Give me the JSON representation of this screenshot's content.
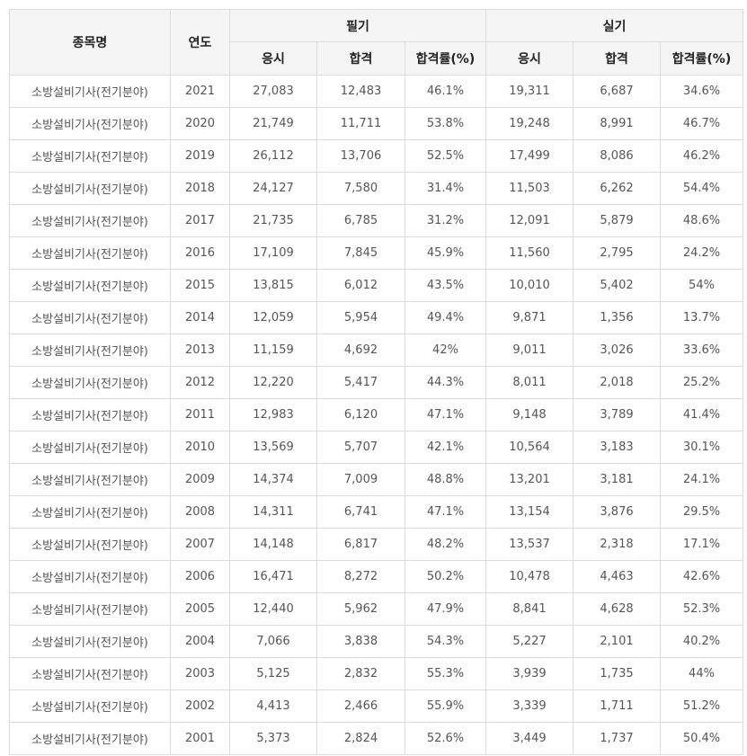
{
  "table": {
    "headers": {
      "name": "종목명",
      "year": "연도",
      "written": "필기",
      "practical": "실기",
      "applicants": "응시",
      "passed": "합격",
      "pass_rate": "합격률(%)"
    },
    "rows": [
      {
        "name": "소방설비기사(전기분야)",
        "year": "2021",
        "w_app": "27,083",
        "w_pass": "12,483",
        "w_rate": "46.1%",
        "p_app": "19,311",
        "p_pass": "6,687",
        "p_rate": "34.6%"
      },
      {
        "name": "소방설비기사(전기분야)",
        "year": "2020",
        "w_app": "21,749",
        "w_pass": "11,711",
        "w_rate": "53.8%",
        "p_app": "19,248",
        "p_pass": "8,991",
        "p_rate": "46.7%"
      },
      {
        "name": "소방설비기사(전기분야)",
        "year": "2019",
        "w_app": "26,112",
        "w_pass": "13,706",
        "w_rate": "52.5%",
        "p_app": "17,499",
        "p_pass": "8,086",
        "p_rate": "46.2%"
      },
      {
        "name": "소방설비기사(전기분야)",
        "year": "2018",
        "w_app": "24,127",
        "w_pass": "7,580",
        "w_rate": "31.4%",
        "p_app": "11,503",
        "p_pass": "6,262",
        "p_rate": "54.4%"
      },
      {
        "name": "소방설비기사(전기분야)",
        "year": "2017",
        "w_app": "21,735",
        "w_pass": "6,785",
        "w_rate": "31.2%",
        "p_app": "12,091",
        "p_pass": "5,879",
        "p_rate": "48.6%"
      },
      {
        "name": "소방설비기사(전기분야)",
        "year": "2016",
        "w_app": "17,109",
        "w_pass": "7,845",
        "w_rate": "45.9%",
        "p_app": "11,560",
        "p_pass": "2,795",
        "p_rate": "24.2%"
      },
      {
        "name": "소방설비기사(전기분야)",
        "year": "2015",
        "w_app": "13,815",
        "w_pass": "6,012",
        "w_rate": "43.5%",
        "p_app": "10,010",
        "p_pass": "5,402",
        "p_rate": "54%"
      },
      {
        "name": "소방설비기사(전기분야)",
        "year": "2014",
        "w_app": "12,059",
        "w_pass": "5,954",
        "w_rate": "49.4%",
        "p_app": "9,871",
        "p_pass": "1,356",
        "p_rate": "13.7%"
      },
      {
        "name": "소방설비기사(전기분야)",
        "year": "2013",
        "w_app": "11,159",
        "w_pass": "4,692",
        "w_rate": "42%",
        "p_app": "9,011",
        "p_pass": "3,026",
        "p_rate": "33.6%"
      },
      {
        "name": "소방설비기사(전기분야)",
        "year": "2012",
        "w_app": "12,220",
        "w_pass": "5,417",
        "w_rate": "44.3%",
        "p_app": "8,011",
        "p_pass": "2,018",
        "p_rate": "25.2%"
      },
      {
        "name": "소방설비기사(전기분야)",
        "year": "2011",
        "w_app": "12,983",
        "w_pass": "6,120",
        "w_rate": "47.1%",
        "p_app": "9,148",
        "p_pass": "3,789",
        "p_rate": "41.4%"
      },
      {
        "name": "소방설비기사(전기분야)",
        "year": "2010",
        "w_app": "13,569",
        "w_pass": "5,707",
        "w_rate": "42.1%",
        "p_app": "10,564",
        "p_pass": "3,183",
        "p_rate": "30.1%"
      },
      {
        "name": "소방설비기사(전기분야)",
        "year": "2009",
        "w_app": "14,374",
        "w_pass": "7,009",
        "w_rate": "48.8%",
        "p_app": "13,201",
        "p_pass": "3,181",
        "p_rate": "24.1%"
      },
      {
        "name": "소방설비기사(전기분야)",
        "year": "2008",
        "w_app": "14,311",
        "w_pass": "6,741",
        "w_rate": "47.1%",
        "p_app": "13,154",
        "p_pass": "3,876",
        "p_rate": "29.5%"
      },
      {
        "name": "소방설비기사(전기분야)",
        "year": "2007",
        "w_app": "14,148",
        "w_pass": "6,817",
        "w_rate": "48.2%",
        "p_app": "13,537",
        "p_pass": "2,318",
        "p_rate": "17.1%"
      },
      {
        "name": "소방설비기사(전기분야)",
        "year": "2006",
        "w_app": "16,471",
        "w_pass": "8,272",
        "w_rate": "50.2%",
        "p_app": "10,478",
        "p_pass": "4,463",
        "p_rate": "42.6%"
      },
      {
        "name": "소방설비기사(전기분야)",
        "year": "2005",
        "w_app": "12,440",
        "w_pass": "5,962",
        "w_rate": "47.9%",
        "p_app": "8,841",
        "p_pass": "4,628",
        "p_rate": "52.3%"
      },
      {
        "name": "소방설비기사(전기분야)",
        "year": "2004",
        "w_app": "7,066",
        "w_pass": "3,838",
        "w_rate": "54.3%",
        "p_app": "5,227",
        "p_pass": "2,101",
        "p_rate": "40.2%"
      },
      {
        "name": "소방설비기사(전기분야)",
        "year": "2003",
        "w_app": "5,125",
        "w_pass": "2,832",
        "w_rate": "55.3%",
        "p_app": "3,939",
        "p_pass": "1,735",
        "p_rate": "44%"
      },
      {
        "name": "소방설비기사(전기분야)",
        "year": "2002",
        "w_app": "4,413",
        "w_pass": "2,466",
        "w_rate": "55.9%",
        "p_app": "3,339",
        "p_pass": "1,711",
        "p_rate": "51.2%"
      },
      {
        "name": "소방설비기사(전기분야)",
        "year": "2001",
        "w_app": "5,373",
        "w_pass": "2,824",
        "w_rate": "52.6%",
        "p_app": "3,449",
        "p_pass": "1,737",
        "p_rate": "50.4%"
      }
    ]
  }
}
